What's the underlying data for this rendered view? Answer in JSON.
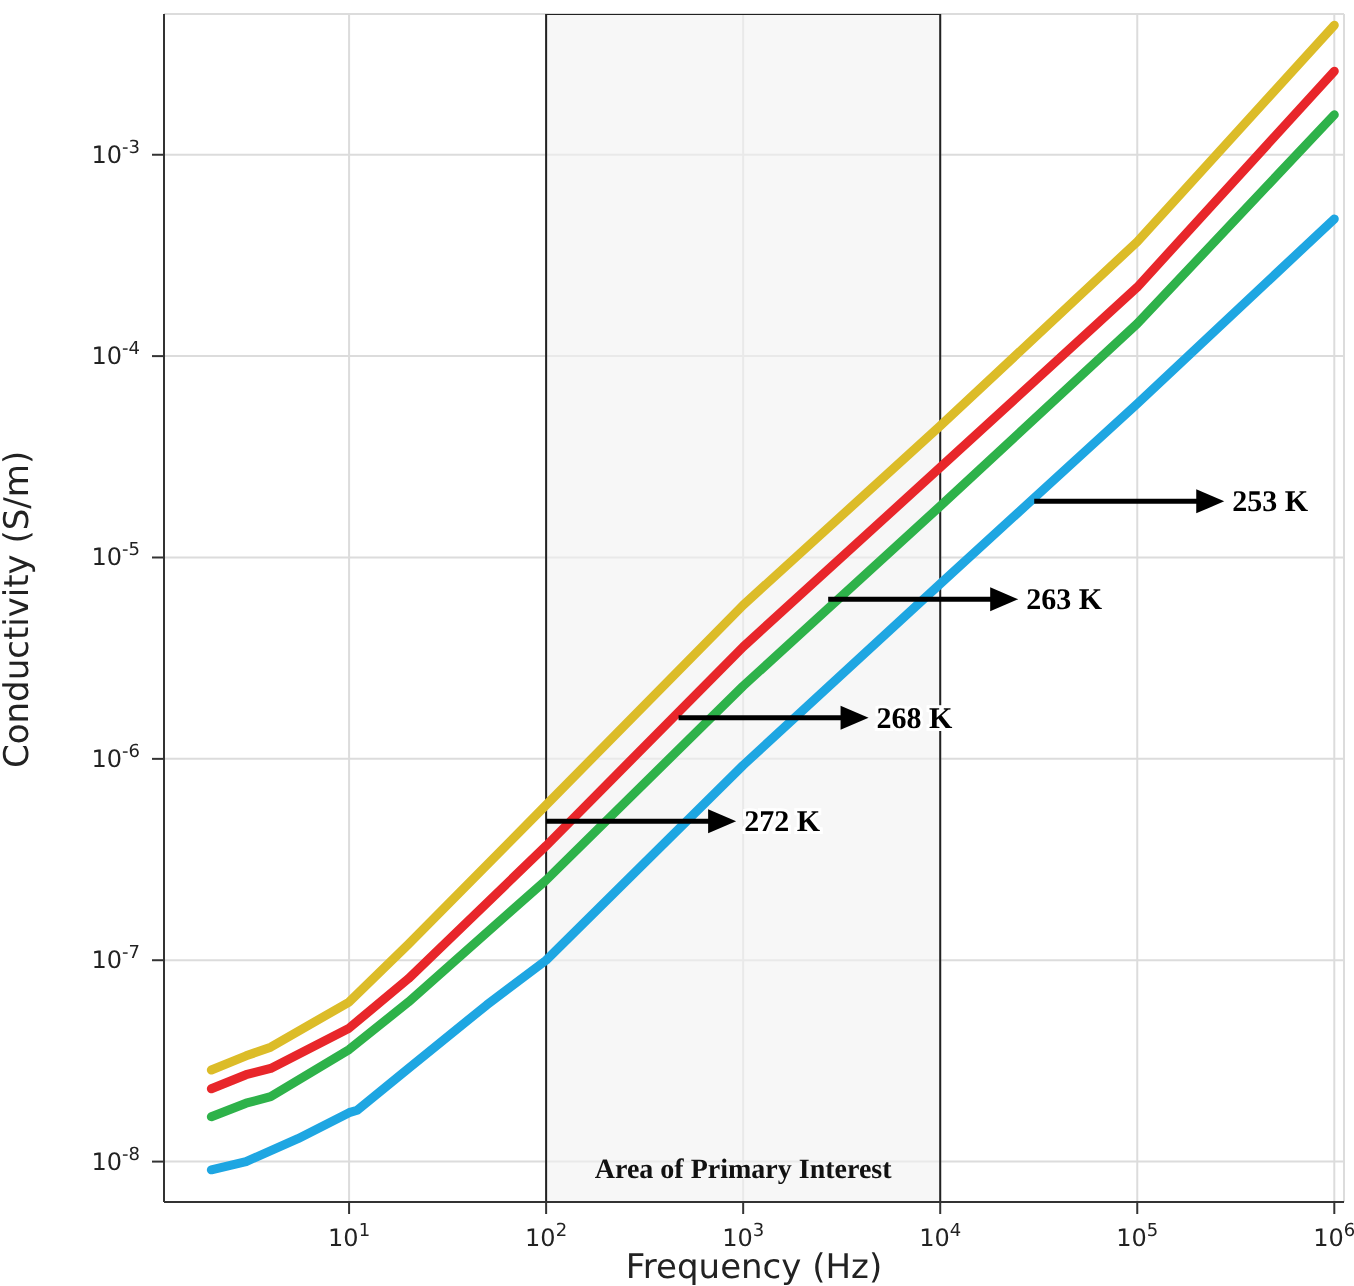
{
  "chart_data": {
    "type": "line",
    "xlabel": "Frequency (Hz)",
    "ylabel": "Conductivity (S/m)",
    "log": "xy",
    "grid": true,
    "legend": false,
    "marker": "none",
    "line_style": "solid",
    "xlim": [
      1.15,
      1120000
    ],
    "ylim": [
      6.3e-09,
      0.005
    ],
    "xticks": [
      {
        "value": 10,
        "label": "10$^{1}$"
      },
      {
        "value": 100,
        "label": "10$^{2}$"
      },
      {
        "value": 1000,
        "label": "10$^{3}$"
      },
      {
        "value": 10000,
        "label": "10$^{4}$"
      },
      {
        "value": 100000,
        "label": "10$^{5}$"
      },
      {
        "value": 1000000,
        "label": "10$^{6}$"
      }
    ],
    "yticks": [
      {
        "value": 1e-08,
        "label": "10$^{-8}$"
      },
      {
        "value": 1e-07,
        "label": "10$^{-7}$"
      },
      {
        "value": 1e-06,
        "label": "10$^{-6}$"
      },
      {
        "value": 1e-05,
        "label": "10$^{-5}$"
      },
      {
        "value": 0.0001,
        "label": "10$^{-4}$"
      },
      {
        "value": 0.001,
        "label": "10$^{-3}$"
      }
    ],
    "series": [
      {
        "color": "#dcbc28",
        "x": [
          2,
          3,
          4,
          10,
          20,
          100,
          1000,
          10000,
          100000,
          1000000
        ],
        "values": [
          2.85e-08,
          3.35e-08,
          3.7e-08,
          6.2e-08,
          1.2e-07,
          5.9e-07,
          5.8e-06,
          4.5e-05,
          0.00037,
          0.0044
        ]
      },
      {
        "color": "#e8262a",
        "x": [
          2,
          3,
          4,
          10,
          20,
          100,
          1000,
          10000,
          100000,
          1000000
        ],
        "values": [
          2.3e-08,
          2.7e-08,
          2.9e-08,
          4.6e-08,
          8.1e-08,
          3.7e-07,
          3.6e-06,
          2.8e-05,
          0.00022,
          0.0026
        ]
      },
      {
        "color": "#2eb24a",
        "x": [
          2,
          3,
          4,
          10,
          20,
          100,
          1000,
          10000,
          100000,
          1000000
        ],
        "values": [
          1.67e-08,
          1.95e-08,
          2.1e-08,
          3.6e-08,
          6.2e-08,
          2.5e-07,
          2.3e-06,
          1.8e-05,
          0.000145,
          0.00158
        ]
      },
      {
        "color": "#1ea6e2",
        "x": [
          2,
          3,
          5.5,
          10,
          11,
          20,
          50,
          100,
          1000,
          10000,
          100000,
          1000000
        ],
        "values": [
          9.1e-09,
          1e-08,
          1.3e-08,
          1.75e-08,
          1.8e-08,
          2.9e-08,
          6e-08,
          1e-07,
          9.3e-07,
          7.4e-06,
          5.8e-05,
          0.00048
        ]
      }
    ],
    "annotations": [
      {
        "text": "253 K",
        "x": 30000,
        "y": 1.9e-05
      },
      {
        "text": "263 K",
        "x": 2700,
        "y": 6.2e-06
      },
      {
        "text": "268 K",
        "x": 470,
        "y": 1.6e-06
      },
      {
        "text": "272 K",
        "x": 100,
        "y": 4.9e-07
      }
    ],
    "bands": [
      {
        "axis": "x",
        "from": 100,
        "to": 10000,
        "label": "Area of Primary Interest",
        "color": "#f2f2f2"
      }
    ]
  }
}
